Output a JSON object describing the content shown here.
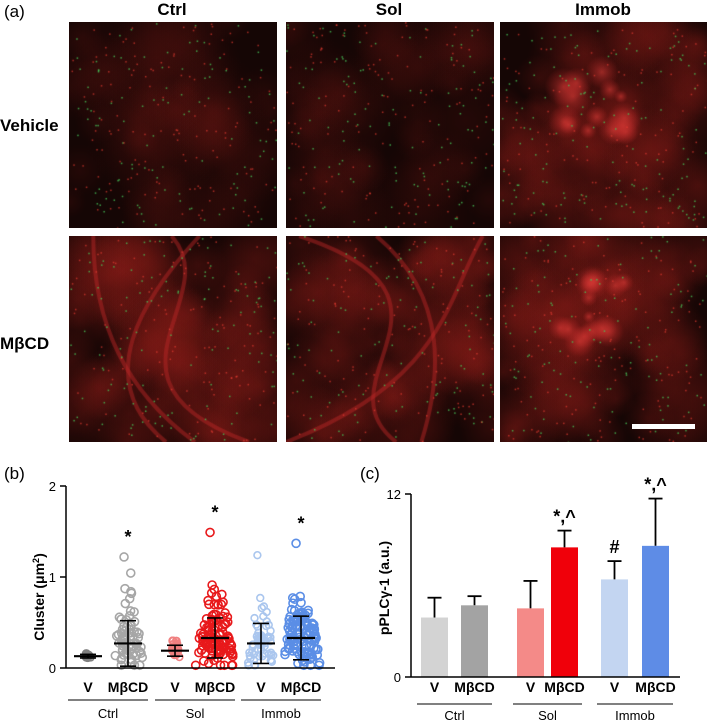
{
  "figure": {
    "panel_a": "(a)",
    "panel_b": "(b)",
    "panel_c": "(c)",
    "column_headers": [
      "Ctrl",
      "Sol",
      "Immob"
    ],
    "row_headers": [
      "Vehicle",
      "MβCD"
    ]
  },
  "micrographs": [
    {
      "row": "Vehicle",
      "col": "Ctrl",
      "tone": "dim"
    },
    {
      "row": "Vehicle",
      "col": "Sol",
      "tone": "dim"
    },
    {
      "row": "Vehicle",
      "col": "Immob",
      "tone": "nucleus"
    },
    {
      "row": "MβCD",
      "col": "Ctrl",
      "tone": "cells"
    },
    {
      "row": "MβCD",
      "col": "Sol",
      "tone": "cells"
    },
    {
      "row": "MβCD",
      "col": "Immob",
      "tone": "nucleus",
      "scale_bar": true
    }
  ],
  "chart_data": [
    {
      "type": "scatter",
      "panel": "(b)",
      "ylabel": "Cluster (μm²)",
      "ylabel_main": "Cluster (μm",
      "ylabel_sup": "2",
      "ylabel_close": ")",
      "ylim": [
        0,
        2
      ],
      "yticks": [
        "0",
        "1",
        "2"
      ],
      "categories": [
        "V",
        "MβCD",
        "V",
        "MβCD",
        "V",
        "MβCD"
      ],
      "groups": [
        "Ctrl",
        "Sol",
        "Immob"
      ],
      "colors": [
        "#808080",
        "#a6a6a6",
        "#f08080",
        "#e8191b",
        "#aac6ee",
        "#5b8ee6"
      ],
      "series": [
        {
          "group": "Ctrl",
          "treatment": "V",
          "mean": 0.13,
          "sd": 0.02,
          "max": 0.16,
          "n": 15
        },
        {
          "group": "Ctrl",
          "treatment": "MβCD",
          "mean": 0.27,
          "sd": 0.25,
          "max": 1.22,
          "n": 70
        },
        {
          "group": "Sol",
          "treatment": "V",
          "mean": 0.19,
          "sd": 0.06,
          "max": 0.3,
          "n": 30
        },
        {
          "group": "Sol",
          "treatment": "MβCD",
          "mean": 0.33,
          "sd": 0.22,
          "max": 1.49,
          "n": 110
        },
        {
          "group": "Immob",
          "treatment": "V",
          "mean": 0.27,
          "sd": 0.22,
          "max": 1.24,
          "n": 60
        },
        {
          "group": "Immob",
          "treatment": "MβCD",
          "mean": 0.33,
          "sd": 0.24,
          "max": 1.37,
          "n": 120
        }
      ],
      "annotations": [
        "*",
        "*",
        "*"
      ]
    },
    {
      "type": "bar",
      "panel": "(c)",
      "ylabel": "pPLCγ-1 (a.u.)",
      "ylim": [
        0,
        12
      ],
      "yticks": [
        "0",
        "12"
      ],
      "categories": [
        "V",
        "MβCD",
        "V",
        "MβCD",
        "V",
        "MβCD"
      ],
      "groups": [
        "Ctrl",
        "Sol",
        "Immob"
      ],
      "colors": [
        "#d3d3d3",
        "#a3a3a3",
        "#f48a88",
        "#f0000a",
        "#c3d5f1",
        "#5e8ce6"
      ],
      "values": [
        3.9,
        4.7,
        4.5,
        8.5,
        6.4,
        8.6
      ],
      "errors": [
        1.3,
        0.6,
        1.8,
        1.1,
        1.2,
        3.1
      ],
      "annotations": [
        {
          "index": 3,
          "text": "*,^"
        },
        {
          "index": 4,
          "text": "#"
        },
        {
          "index": 5,
          "text": "*,^"
        }
      ]
    }
  ]
}
